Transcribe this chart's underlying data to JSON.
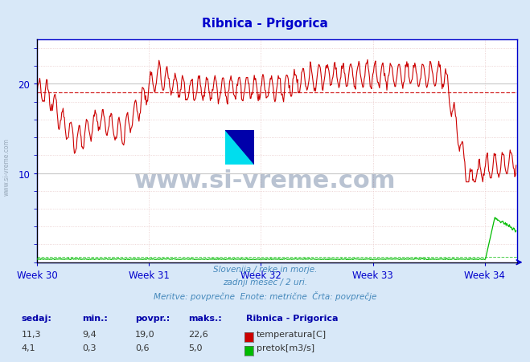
{
  "title": "Ribnica - Prigorica",
  "title_color": "#0000cc",
  "bg_color": "#d8e8f8",
  "plot_bg_color": "#ffffff",
  "grid_major_color": "#c8c8c8",
  "grid_minor_color": "#e8c8c8",
  "subtitle_lines": [
    "Slovenija / reke in morje.",
    "zadnji mesec / 2 uri.",
    "Meritve: povprečne  Enote: metrične  Črta: povprečje"
  ],
  "subtitle_color": "#4488bb",
  "footer_labels": [
    "sedaj:",
    "min.:",
    "povpr.:",
    "maks.:"
  ],
  "footer_label_color": "#0000aa",
  "series_name": "Ribnica - Prigorica",
  "temp_label": "temperatura[C]",
  "flow_label": "pretok[m3/s]",
  "temp_color": "#cc0000",
  "flow_color": "#00bb00",
  "avg_line_color": "#cc0000",
  "axis_color": "#0000cc",
  "tick_color": "#0000cc",
  "week_labels": [
    "Week 30",
    "Week 31",
    "Week 32",
    "Week 33",
    "Week 34"
  ],
  "week_positions": [
    0,
    168,
    336,
    504,
    672
  ],
  "total_points": 720,
  "ymax": 25,
  "yticks": [
    10,
    20
  ],
  "temp_avg": 19.0,
  "temp_min": 9.4,
  "temp_max": 22.6,
  "temp_current": 11.3,
  "flow_avg": 0.6,
  "flow_min": 0.3,
  "flow_max": 5.0,
  "flow_current": 4.1,
  "watermark": "www.si-vreme.com",
  "watermark_color": "#1a3a6a",
  "logo_colors": {
    "yellow": "#ffee00",
    "cyan": "#00ddee",
    "blue": "#0000aa"
  }
}
